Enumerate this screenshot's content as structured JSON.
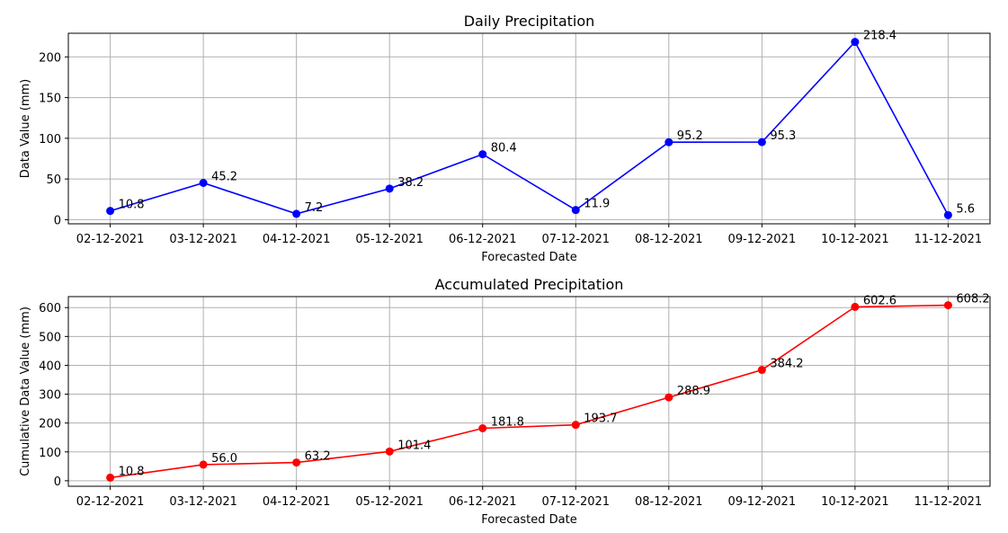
{
  "chart_data": [
    {
      "type": "line",
      "title": "Daily Precipitation",
      "xlabel": "Forecasted Date",
      "ylabel": "Data Value (mm)",
      "categories": [
        "02-12-2021",
        "03-12-2021",
        "04-12-2021",
        "05-12-2021",
        "06-12-2021",
        "07-12-2021",
        "08-12-2021",
        "09-12-2021",
        "10-12-2021",
        "11-12-2021"
      ],
      "values": [
        10.8,
        45.2,
        7.2,
        38.2,
        80.4,
        11.9,
        95.2,
        95.3,
        218.4,
        5.6
      ],
      "data_labels": [
        "10.8",
        "45.2",
        "7.2",
        "38.2",
        "80.4",
        "11.9",
        "95.2",
        "95.3",
        "218.4",
        "5.6"
      ],
      "ylim": [
        -5.04,
        229.04
      ],
      "yticks": [
        0,
        50,
        100,
        150,
        200
      ],
      "ytick_labels": [
        "0",
        "50",
        "100",
        "150",
        "200"
      ],
      "grid": true,
      "color": "#0000ff",
      "marker": "circle"
    },
    {
      "type": "line",
      "title": "Accumulated Precipitation",
      "xlabel": "Forecasted Date",
      "ylabel": "Cumulative Data Value (mm)",
      "categories": [
        "02-12-2021",
        "03-12-2021",
        "04-12-2021",
        "05-12-2021",
        "06-12-2021",
        "07-12-2021",
        "08-12-2021",
        "09-12-2021",
        "10-12-2021",
        "11-12-2021"
      ],
      "values": [
        10.8,
        56.0,
        63.2,
        101.4,
        181.8,
        193.7,
        288.9,
        384.2,
        602.6,
        608.2
      ],
      "data_labels": [
        "10.8",
        "56.0",
        "63.2",
        "101.4",
        "181.8",
        "193.7",
        "288.9",
        "384.2",
        "602.6",
        "608.2"
      ],
      "ylim": [
        -19.07,
        638.07
      ],
      "yticks": [
        0,
        100,
        200,
        300,
        400,
        500,
        600
      ],
      "ytick_labels": [
        "0",
        "100",
        "200",
        "300",
        "400",
        "500",
        "600"
      ],
      "grid": true,
      "color": "#ff0000",
      "marker": "circle"
    }
  ]
}
